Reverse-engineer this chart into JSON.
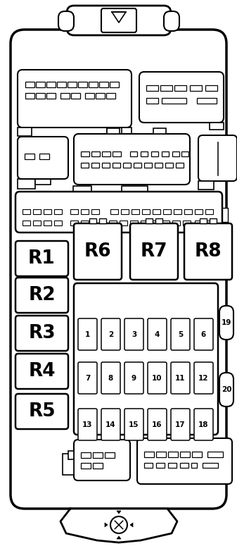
{
  "fig_width": 3.37,
  "fig_height": 7.92,
  "dpi": 100,
  "bg_color": "#ffffff",
  "border_color": "#000000",
  "relay_labels_left": [
    "R1",
    "R2",
    "R3",
    "R4",
    "R5"
  ],
  "relay_labels_top": [
    "R6",
    "R7",
    "R8"
  ],
  "fuse_rows": [
    [
      1,
      2,
      3,
      4,
      5,
      6
    ],
    [
      7,
      8,
      9,
      10,
      11,
      12
    ],
    [
      13,
      14,
      15,
      16,
      17,
      18
    ]
  ],
  "fuse_extra": [
    19,
    20
  ]
}
